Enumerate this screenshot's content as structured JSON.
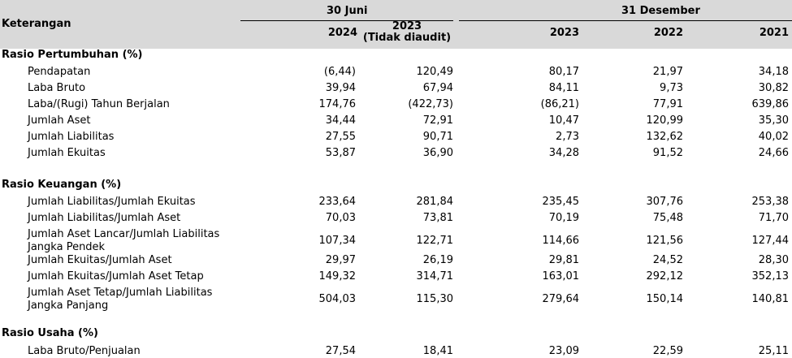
{
  "header": {
    "keterangan": "Keterangan",
    "group_june": "30 Juni",
    "group_dec": "31 Desember",
    "cols": [
      "2024",
      "2023",
      "2023",
      "2022",
      "2021"
    ],
    "col2_note": "(Tidak diaudit)"
  },
  "sections": [
    {
      "title": "Rasio Pertumbuhan (%)",
      "rows": [
        {
          "label": "Pendapatan",
          "values": [
            "(6,44)",
            "120,49",
            "80,17",
            "21,97",
            "34,18"
          ]
        },
        {
          "label": "Laba Bruto",
          "values": [
            "39,94",
            "67,94",
            "84,11",
            "9,73",
            "30,82"
          ]
        },
        {
          "label": "Laba/(Rugi) Tahun Berjalan",
          "values": [
            "174,76",
            "(422,73)",
            "(86,21)",
            "77,91",
            "639,86"
          ]
        },
        {
          "label": "Jumlah Aset",
          "values": [
            "34,44",
            "72,91",
            "10,47",
            "120,99",
            "35,30"
          ]
        },
        {
          "label": "Jumlah Liabilitas",
          "values": [
            "27,55",
            "90,71",
            "2,73",
            "132,62",
            "40,02"
          ]
        },
        {
          "label": "Jumlah Ekuitas",
          "values": [
            "53,87",
            "36,90",
            "34,28",
            "91,52",
            "24,66"
          ]
        }
      ]
    },
    {
      "title": "Rasio Keuangan (%)",
      "rows": [
        {
          "label": "Jumlah Liabilitas/Jumlah Ekuitas",
          "values": [
            "233,64",
            "281,84",
            "235,45",
            "307,76",
            "253,38"
          ]
        },
        {
          "label": "Jumlah Liabilitas/Jumlah Aset",
          "values": [
            "70,03",
            "73,81",
            "70,19",
            "75,48",
            "71,70"
          ]
        },
        {
          "label": "Jumlah Aset Lancar/Jumlah Liabilitas",
          "label2": "Jangka Pendek",
          "values": [
            "107,34",
            "122,71",
            "114,66",
            "121,56",
            "127,44"
          ]
        },
        {
          "label": "Jumlah Ekuitas/Jumlah Aset",
          "values": [
            "29,97",
            "26,19",
            "29,81",
            "24,52",
            "28,30"
          ]
        },
        {
          "label": "Jumlah Ekuitas/Jumlah Aset Tetap",
          "values": [
            "149,32",
            "314,71",
            "163,01",
            "292,12",
            "352,13"
          ]
        },
        {
          "label": "Jumlah Aset Tetap/Jumlah Liabilitas",
          "label2": "Jangka Panjang",
          "values": [
            "504,03",
            "115,30",
            "279,64",
            "150,14",
            "140,81"
          ]
        }
      ]
    },
    {
      "title": "Rasio Usaha (%)",
      "rows": [
        {
          "label": "Laba Bruto/Penjualan",
          "values": [
            "27,54",
            "18,41",
            "23,09",
            "22,59",
            "25,11"
          ]
        }
      ]
    }
  ]
}
